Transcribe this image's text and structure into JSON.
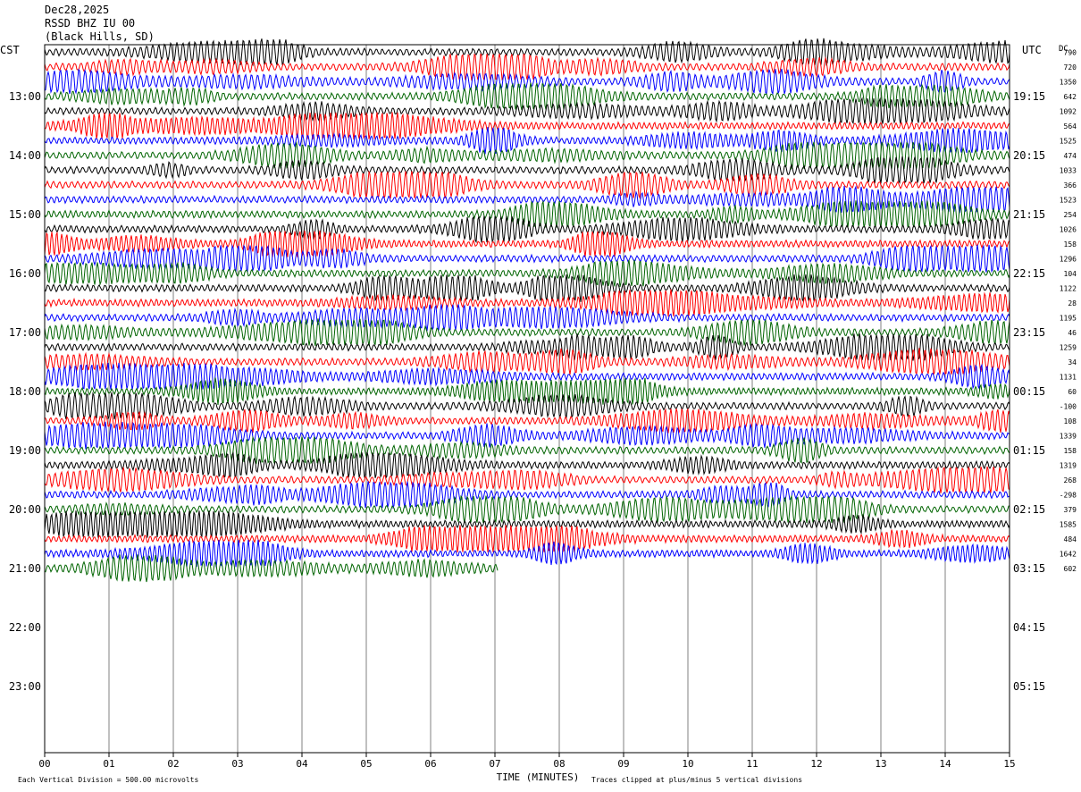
{
  "header": {
    "date": "Dec28,2025",
    "station": "RSSD BHZ IU 00",
    "location": "(Black Hills, SD)"
  },
  "labels": {
    "left_zone": "CST",
    "right_zone": "UTC",
    "dc": "DC"
  },
  "footer": {
    "scale_note": "Each Vertical Division =  500.00 microvolts",
    "xlabel": "TIME (MINUTES)",
    "clip_note": "Traces clipped at plus/minus 5 vertical divisions"
  },
  "colors": {
    "trace_cycle": [
      "#000000",
      "#ff0000",
      "#0000ff",
      "#006400"
    ],
    "grid": "#808080"
  },
  "chart_data": {
    "type": "line",
    "description_of_axes": "helicorder",
    "xlabel": "TIME (MINUTES)",
    "xlim": [
      0,
      15
    ],
    "x_ticks": [
      "00",
      "01",
      "02",
      "03",
      "04",
      "05",
      "06",
      "07",
      "08",
      "09",
      "10",
      "11",
      "12",
      "13",
      "14",
      "15"
    ],
    "left_hour_labels": [
      "13:00",
      "14:00",
      "15:00",
      "16:00",
      "17:00",
      "18:00",
      "19:00",
      "20:00",
      "21:00",
      "22:00",
      "23:00"
    ],
    "right_hour_labels": [
      "19:15",
      "20:15",
      "21:15",
      "22:15",
      "23:15",
      "00:15",
      "01:15",
      "02:15",
      "03:15",
      "04:15",
      "05:15"
    ],
    "lines_per_hour": 4,
    "total_rows": 48,
    "dc_offsets": [
      "790",
      "720",
      "1350",
      "642",
      "1092",
      "564",
      "1525",
      "474",
      "1033",
      "366",
      "1523",
      "254",
      "1026",
      "158",
      "1296",
      "104",
      "1122",
      "28",
      "1195",
      "46",
      "1259",
      "34",
      "1131",
      "60",
      "-100",
      "108",
      "1339",
      "158",
      "1319",
      "268",
      "-298",
      "379",
      "1585",
      "484",
      "1642",
      "602"
    ],
    "recorded_rows": 36,
    "last_row_minutes": 7.05,
    "scale_microvolts_per_division": 500.0,
    "clip_divisions": 5
  }
}
